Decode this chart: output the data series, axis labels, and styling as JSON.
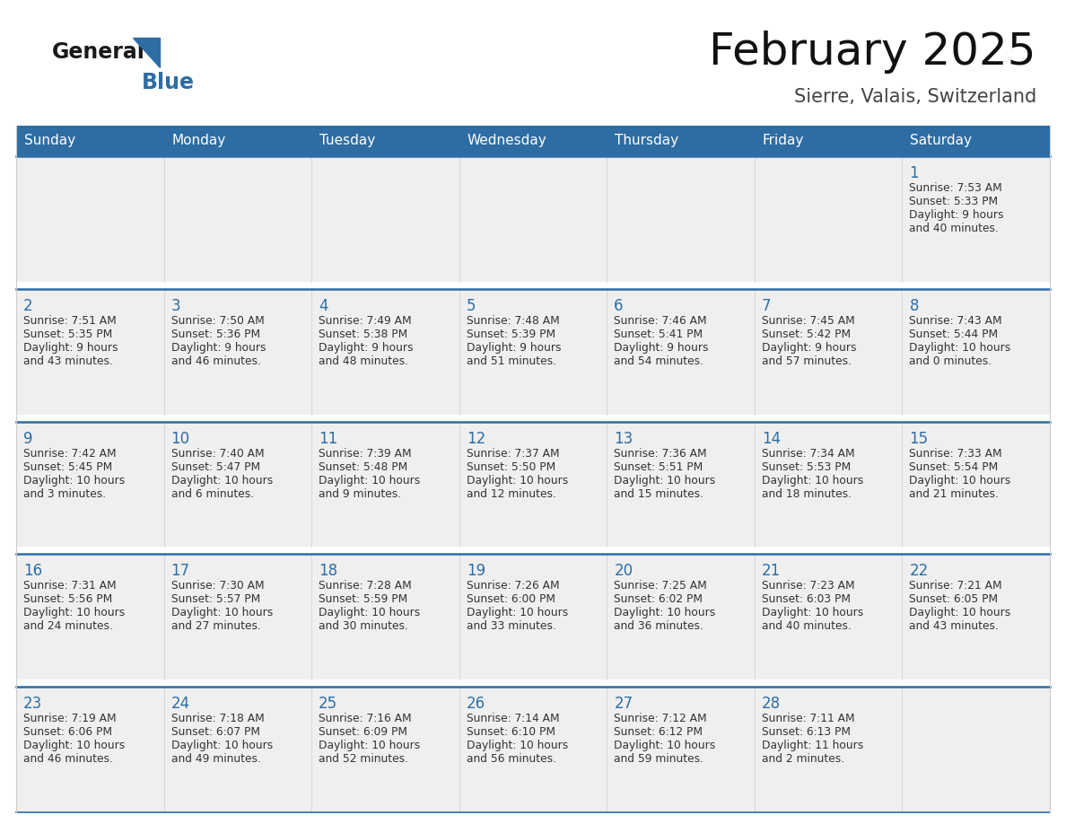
{
  "title": "February 2025",
  "subtitle": "Sierre, Valais, Switzerland",
  "header_bg": "#2E6DA4",
  "header_text": "#FFFFFF",
  "day_names": [
    "Sunday",
    "Monday",
    "Tuesday",
    "Wednesday",
    "Thursday",
    "Friday",
    "Saturday"
  ],
  "cell_bg": "#EFEFEF",
  "cell_white_bg": "#FFFFFF",
  "row_separator_color": "#2E6DA4",
  "col_separator_color": "#CCCCCC",
  "number_color": "#2E6DA4",
  "text_color": "#333333",
  "logo_general_color": "#1a1a1a",
  "logo_blue_color": "#2E6DA4",
  "days": [
    {
      "day": 1,
      "col": 6,
      "row": 0,
      "sunrise": "7:53 AM",
      "sunset": "5:33 PM",
      "daylight": "9 hours and 40 minutes."
    },
    {
      "day": 2,
      "col": 0,
      "row": 1,
      "sunrise": "7:51 AM",
      "sunset": "5:35 PM",
      "daylight": "9 hours and 43 minutes."
    },
    {
      "day": 3,
      "col": 1,
      "row": 1,
      "sunrise": "7:50 AM",
      "sunset": "5:36 PM",
      "daylight": "9 hours and 46 minutes."
    },
    {
      "day": 4,
      "col": 2,
      "row": 1,
      "sunrise": "7:49 AM",
      "sunset": "5:38 PM",
      "daylight": "9 hours and 48 minutes."
    },
    {
      "day": 5,
      "col": 3,
      "row": 1,
      "sunrise": "7:48 AM",
      "sunset": "5:39 PM",
      "daylight": "9 hours and 51 minutes."
    },
    {
      "day": 6,
      "col": 4,
      "row": 1,
      "sunrise": "7:46 AM",
      "sunset": "5:41 PM",
      "daylight": "9 hours and 54 minutes."
    },
    {
      "day": 7,
      "col": 5,
      "row": 1,
      "sunrise": "7:45 AM",
      "sunset": "5:42 PM",
      "daylight": "9 hours and 57 minutes."
    },
    {
      "day": 8,
      "col": 6,
      "row": 1,
      "sunrise": "7:43 AM",
      "sunset": "5:44 PM",
      "daylight": "10 hours and 0 minutes."
    },
    {
      "day": 9,
      "col": 0,
      "row": 2,
      "sunrise": "7:42 AM",
      "sunset": "5:45 PM",
      "daylight": "10 hours and 3 minutes."
    },
    {
      "day": 10,
      "col": 1,
      "row": 2,
      "sunrise": "7:40 AM",
      "sunset": "5:47 PM",
      "daylight": "10 hours and 6 minutes."
    },
    {
      "day": 11,
      "col": 2,
      "row": 2,
      "sunrise": "7:39 AM",
      "sunset": "5:48 PM",
      "daylight": "10 hours and 9 minutes."
    },
    {
      "day": 12,
      "col": 3,
      "row": 2,
      "sunrise": "7:37 AM",
      "sunset": "5:50 PM",
      "daylight": "10 hours and 12 minutes."
    },
    {
      "day": 13,
      "col": 4,
      "row": 2,
      "sunrise": "7:36 AM",
      "sunset": "5:51 PM",
      "daylight": "10 hours and 15 minutes."
    },
    {
      "day": 14,
      "col": 5,
      "row": 2,
      "sunrise": "7:34 AM",
      "sunset": "5:53 PM",
      "daylight": "10 hours and 18 minutes."
    },
    {
      "day": 15,
      "col": 6,
      "row": 2,
      "sunrise": "7:33 AM",
      "sunset": "5:54 PM",
      "daylight": "10 hours and 21 minutes."
    },
    {
      "day": 16,
      "col": 0,
      "row": 3,
      "sunrise": "7:31 AM",
      "sunset": "5:56 PM",
      "daylight": "10 hours and 24 minutes."
    },
    {
      "day": 17,
      "col": 1,
      "row": 3,
      "sunrise": "7:30 AM",
      "sunset": "5:57 PM",
      "daylight": "10 hours and 27 minutes."
    },
    {
      "day": 18,
      "col": 2,
      "row": 3,
      "sunrise": "7:28 AM",
      "sunset": "5:59 PM",
      "daylight": "10 hours and 30 minutes."
    },
    {
      "day": 19,
      "col": 3,
      "row": 3,
      "sunrise": "7:26 AM",
      "sunset": "6:00 PM",
      "daylight": "10 hours and 33 minutes."
    },
    {
      "day": 20,
      "col": 4,
      "row": 3,
      "sunrise": "7:25 AM",
      "sunset": "6:02 PM",
      "daylight": "10 hours and 36 minutes."
    },
    {
      "day": 21,
      "col": 5,
      "row": 3,
      "sunrise": "7:23 AM",
      "sunset": "6:03 PM",
      "daylight": "10 hours and 40 minutes."
    },
    {
      "day": 22,
      "col": 6,
      "row": 3,
      "sunrise": "7:21 AM",
      "sunset": "6:05 PM",
      "daylight": "10 hours and 43 minutes."
    },
    {
      "day": 23,
      "col": 0,
      "row": 4,
      "sunrise": "7:19 AM",
      "sunset": "6:06 PM",
      "daylight": "10 hours and 46 minutes."
    },
    {
      "day": 24,
      "col": 1,
      "row": 4,
      "sunrise": "7:18 AM",
      "sunset": "6:07 PM",
      "daylight": "10 hours and 49 minutes."
    },
    {
      "day": 25,
      "col": 2,
      "row": 4,
      "sunrise": "7:16 AM",
      "sunset": "6:09 PM",
      "daylight": "10 hours and 52 minutes."
    },
    {
      "day": 26,
      "col": 3,
      "row": 4,
      "sunrise": "7:14 AM",
      "sunset": "6:10 PM",
      "daylight": "10 hours and 56 minutes."
    },
    {
      "day": 27,
      "col": 4,
      "row": 4,
      "sunrise": "7:12 AM",
      "sunset": "6:12 PM",
      "daylight": "10 hours and 59 minutes."
    },
    {
      "day": 28,
      "col": 5,
      "row": 4,
      "sunrise": "7:11 AM",
      "sunset": "6:13 PM",
      "daylight": "11 hours and 2 minutes."
    }
  ]
}
